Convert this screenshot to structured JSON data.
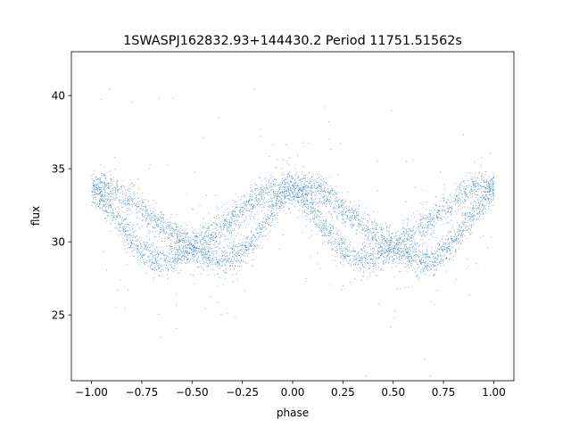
{
  "chart_data": {
    "type": "scatter",
    "title": "1SWASPJ162832.93+144430.2 Period 11751.51562s",
    "xlabel": "phase",
    "ylabel": "flux",
    "xlim": [
      -1.1,
      1.1
    ],
    "ylim": [
      20.5,
      43.0
    ],
    "xticks": [
      -1.0,
      -0.75,
      -0.5,
      -0.25,
      0.0,
      0.25,
      0.5,
      0.75,
      1.0
    ],
    "xtick_labels": [
      "−1.00",
      "−0.75",
      "−0.50",
      "−0.25",
      "0.00",
      "0.25",
      "0.50",
      "0.75",
      "1.00"
    ],
    "yticks": [
      25,
      30,
      35,
      40
    ],
    "ytick_labels": [
      "25",
      "30",
      "35",
      "40"
    ],
    "grid": false,
    "marker_color": "#3b82bf",
    "series": [
      {
        "name": "",
        "description_points": [
          {
            "x": -1.0,
            "y": 33.5
          },
          {
            "x": -0.75,
            "y": 32.5
          },
          {
            "x": -0.55,
            "y": 29.0
          },
          {
            "x": -0.5,
            "y": 29.0
          },
          {
            "x": -0.25,
            "y": 32.0
          },
          {
            "x": 0.0,
            "y": 33.5
          },
          {
            "x": 0.25,
            "y": 32.5
          },
          {
            "x": 0.45,
            "y": 29.0
          },
          {
            "x": 0.5,
            "y": 29.0
          },
          {
            "x": 0.75,
            "y": 32.0
          },
          {
            "x": 1.0,
            "y": 33.5
          }
        ]
      }
    ]
  }
}
